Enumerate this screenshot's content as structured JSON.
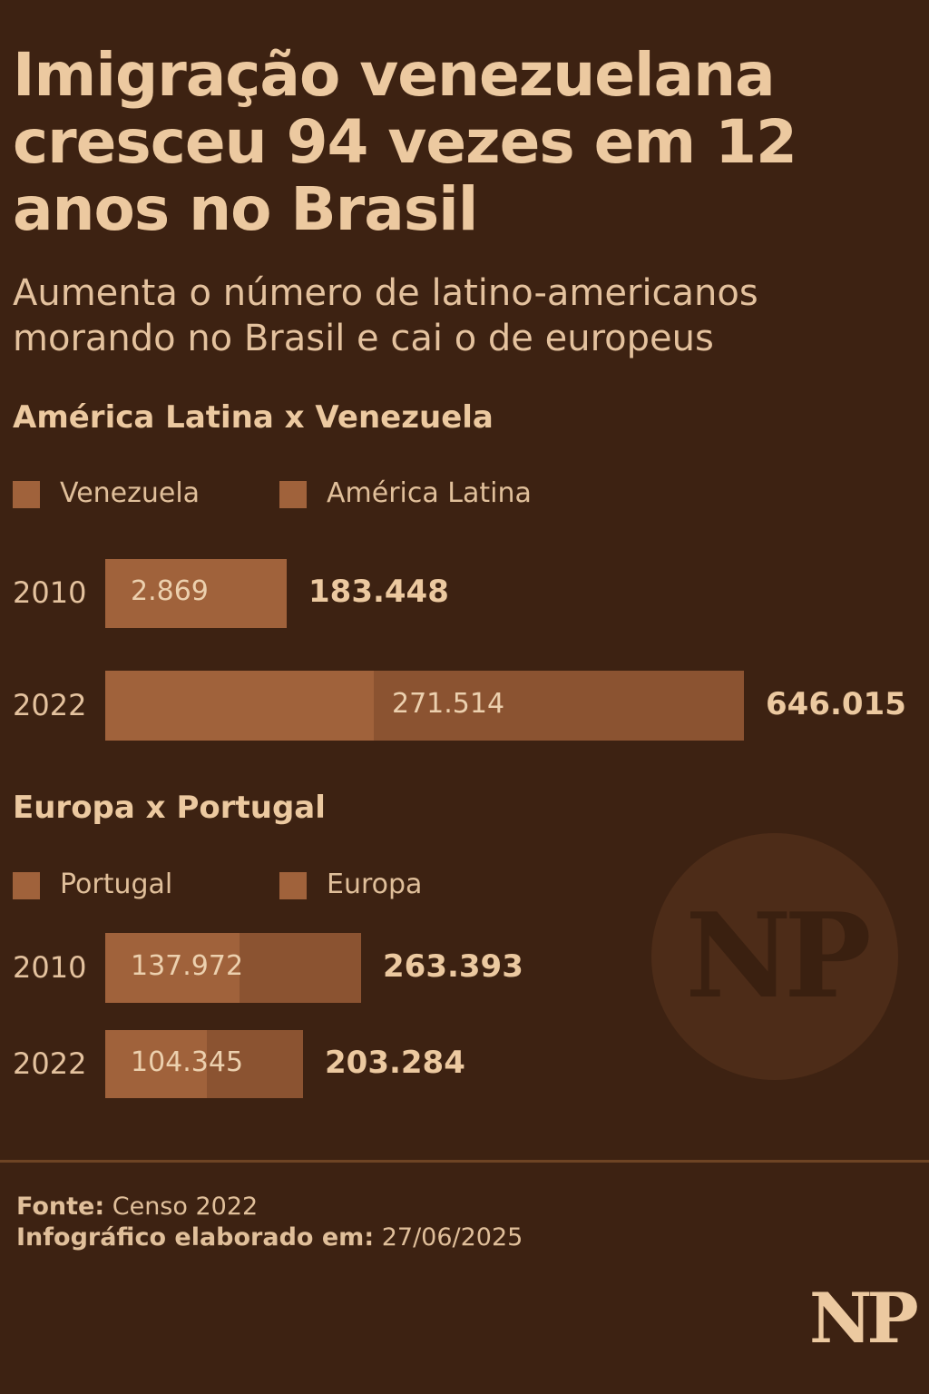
{
  "title": "Imigração venezuelana cresceu 94 vezes em 12 anos no Brasil",
  "subtitle": "Aumenta o número de latino-americanos morando no Brasil e cai o de europeus",
  "colors": {
    "background": "#3d2212",
    "part": "#a0623b",
    "total": "#8b5331",
    "text": "#ecc9a0"
  },
  "chart_data": [
    {
      "type": "bar",
      "orientation": "horizontal",
      "stacked": "overlay",
      "title": "América Latina x Venezuela",
      "legend": [
        "Venezuela",
        "América Latina"
      ],
      "legend_position": "top-left",
      "categories": [
        "2010",
        "2022"
      ],
      "series": [
        {
          "name": "Venezuela",
          "values": [
            2869,
            271514
          ],
          "labels": [
            "2.869",
            "271.514"
          ]
        },
        {
          "name": "América Latina",
          "values": [
            183448,
            646015
          ],
          "labels": [
            "183.448",
            "646.015"
          ]
        }
      ],
      "grid": false
    },
    {
      "type": "bar",
      "orientation": "horizontal",
      "stacked": "overlay",
      "title": "Europa x Portugal",
      "legend": [
        "Portugal",
        "Europa"
      ],
      "legend_position": "top-left",
      "categories": [
        "2010",
        "2022"
      ],
      "series": [
        {
          "name": "Portugal",
          "values": [
            137972,
            104345
          ],
          "labels": [
            "137.972",
            "104.345"
          ]
        },
        {
          "name": "Europa",
          "values": [
            263393,
            203284
          ],
          "labels": [
            "263.393",
            "203.284"
          ]
        }
      ],
      "grid": false
    }
  ],
  "watermark": "NP",
  "footer": {
    "source_label": "Fonte:",
    "source_value": "Censo 2022",
    "date_label": "Infográfico elaborado em:",
    "date_value": "27/06/2025"
  },
  "logo": "NP"
}
